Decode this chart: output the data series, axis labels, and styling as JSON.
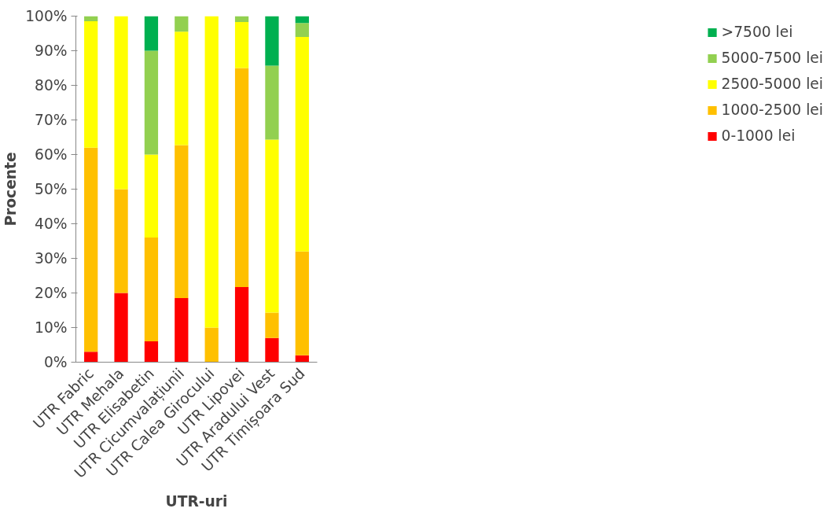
{
  "chart_data": {
    "type": "bar",
    "stacked": true,
    "xlabel": "UTR-uri",
    "ylabel": "Procente",
    "categories": [
      "UTR Fabric",
      "UTR Mehala",
      "UTR Elisabetin",
      "UTR Cicumvalațiunii",
      "UTR Calea Girocului",
      "UTR Lipovei",
      "UTR Aradului Vest",
      "UTR Timișoara Sud"
    ],
    "series": [
      {
        "name": "0-1000 lei",
        "color": "#ff0000",
        "values": [
          3,
          20,
          6,
          18.5,
          0,
          21.7,
          7,
          2
        ]
      },
      {
        "name": "1000-2500 lei",
        "color": "#ffc000",
        "values": [
          59,
          30,
          30,
          44.2,
          10,
          63.3,
          7.3,
          30
        ]
      },
      {
        "name": "2500-5000 lei",
        "color": "#ffff00",
        "values": [
          36.5,
          50,
          24,
          32.8,
          90,
          13.3,
          50,
          62
        ]
      },
      {
        "name": "5000-7500 lei",
        "color": "#92d050",
        "values": [
          1.5,
          0,
          30,
          4.5,
          0,
          1.7,
          21.4,
          4
        ]
      },
      {
        "name": ">7500 lei",
        "color": "#00b050",
        "values": [
          0,
          0,
          10,
          0,
          0,
          0,
          14.3,
          2
        ]
      }
    ],
    "ylim": [
      0,
      100
    ],
    "yticks": [
      {
        "value": 0,
        "label": "0%"
      },
      {
        "value": 10,
        "label": "10%"
      },
      {
        "value": 20,
        "label": "20%"
      },
      {
        "value": 30,
        "label": "30%"
      },
      {
        "value": 40,
        "label": "40%"
      },
      {
        "value": 50,
        "label": "50%"
      },
      {
        "value": 60,
        "label": "60%"
      },
      {
        "value": 70,
        "label": "70%"
      },
      {
        "value": 80,
        "label": "80%"
      },
      {
        "value": 90,
        "label": "90%"
      },
      {
        "value": 100,
        "label": "100%"
      }
    ],
    "grid": false,
    "legend": "right"
  }
}
